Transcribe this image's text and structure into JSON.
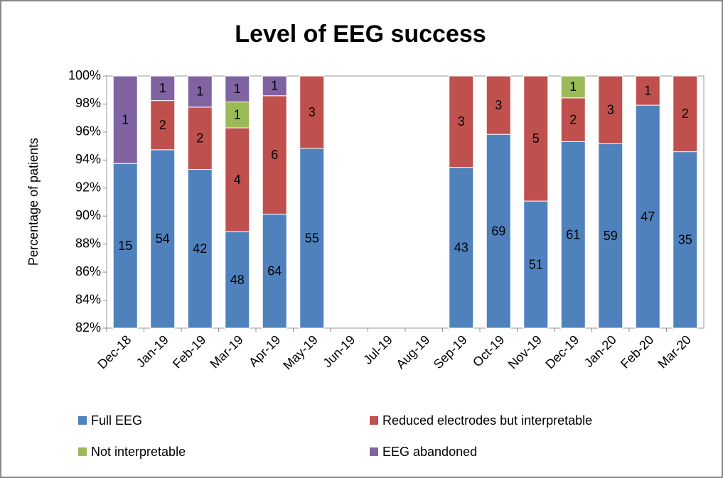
{
  "chart_data": {
    "type": "bar",
    "stacking": "percent",
    "title": "Level of EEG success",
    "y_label": "Percentage of patients",
    "categories": [
      "Dec-18",
      "Jan-19",
      "Feb-19",
      "Mar-19",
      "Apr-19",
      "May-19",
      "Jun-19",
      "Jul-19",
      "Aug-19",
      "Sep-19",
      "Oct-19",
      "Nov-19",
      "Dec-19",
      "Jan-20",
      "Feb-20",
      "Mar-20"
    ],
    "series": [
      {
        "name": "Full EEG",
        "color": "#4f81bd",
        "values": [
          15,
          54,
          42,
          48,
          64,
          55,
          null,
          null,
          null,
          43,
          69,
          51,
          61,
          59,
          47,
          35
        ]
      },
      {
        "name": "Reduced electrodes but interpretable",
        "color": "#c0504d",
        "values": [
          null,
          2,
          2,
          4,
          6,
          3,
          null,
          null,
          null,
          3,
          3,
          5,
          2,
          3,
          1,
          2
        ]
      },
      {
        "name": "Not interpretable",
        "color": "#9bbb59",
        "values": [
          null,
          null,
          null,
          1,
          null,
          null,
          null,
          null,
          null,
          null,
          null,
          null,
          1,
          null,
          null,
          null
        ]
      },
      {
        "name": "EEG abandoned",
        "color": "#8064a2",
        "values": [
          1,
          1,
          1,
          1,
          1,
          null,
          null,
          null,
          null,
          null,
          null,
          null,
          null,
          null,
          null,
          null
        ]
      }
    ],
    "ylim": [
      82,
      100
    ],
    "yticks": [
      {
        "value": 82,
        "label": "82%"
      },
      {
        "value": 84,
        "label": "84%"
      },
      {
        "value": 86,
        "label": "86%"
      },
      {
        "value": 88,
        "label": "88%"
      },
      {
        "value": 90,
        "label": "90%"
      },
      {
        "value": 92,
        "label": "92%"
      },
      {
        "value": 94,
        "label": "94%"
      },
      {
        "value": 96,
        "label": "96%"
      },
      {
        "value": 98,
        "label": "98%"
      },
      {
        "value": 100,
        "label": "100%"
      }
    ],
    "legend": "bottom"
  }
}
